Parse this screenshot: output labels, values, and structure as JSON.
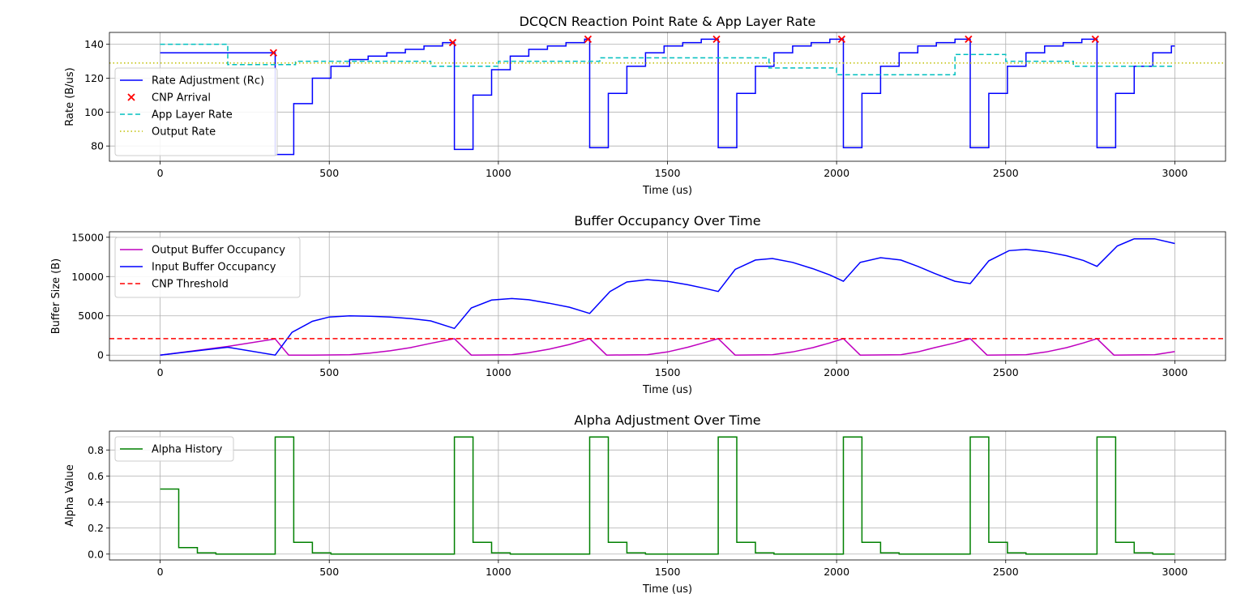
{
  "chart_data": [
    {
      "type": "line",
      "title": "DCQCN Reaction Point Rate & App Layer Rate",
      "xlabel": "Time (us)",
      "ylabel": "Rate (B/us)",
      "xlim": [
        -150,
        3150
      ],
      "ylim": [
        71,
        147
      ],
      "xticks": [
        0,
        500,
        1000,
        1500,
        2000,
        2500,
        3000
      ],
      "yticks": [
        80,
        100,
        120,
        140
      ],
      "grid": true,
      "legend": "lower-left",
      "series": [
        {
          "name": "Rate Adjustment (Rc)",
          "style": "solid-step",
          "color": "#0000ff",
          "x": [
            0,
            340,
            340,
            395,
            395,
            450,
            450,
            505,
            505,
            560,
            560,
            615,
            615,
            670,
            670,
            725,
            725,
            780,
            780,
            835,
            835,
            870,
            870,
            925,
            925,
            980,
            980,
            1035,
            1035,
            1090,
            1090,
            1145,
            1145,
            1200,
            1200,
            1255,
            1255,
            1270,
            1270,
            1325,
            1325,
            1380,
            1380,
            1435,
            1435,
            1490,
            1490,
            1545,
            1545,
            1600,
            1600,
            1650,
            1650,
            1705,
            1705,
            1760,
            1760,
            1815,
            1815,
            1870,
            1870,
            1925,
            1925,
            1980,
            1980,
            2020,
            2020,
            2075,
            2075,
            2130,
            2130,
            2185,
            2185,
            2240,
            2240,
            2295,
            2295,
            2350,
            2350,
            2395,
            2395,
            2450,
            2450,
            2505,
            2505,
            2560,
            2560,
            2615,
            2615,
            2670,
            2670,
            2725,
            2725,
            2770,
            2770,
            2825,
            2825,
            2880,
            2880,
            2935,
            2935,
            2990,
            2990,
            3000
          ],
          "y": [
            135,
            135,
            75,
            75,
            105,
            105,
            120,
            120,
            127,
            127,
            131,
            131,
            133,
            133,
            135,
            135,
            137,
            137,
            139,
            139,
            141,
            141,
            78,
            78,
            110,
            110,
            125,
            125,
            133,
            133,
            137,
            137,
            139,
            139,
            141,
            141,
            143,
            143,
            79,
            79,
            111,
            111,
            127,
            127,
            135,
            135,
            139,
            139,
            141,
            141,
            143,
            143,
            79,
            79,
            111,
            111,
            127,
            127,
            135,
            135,
            139,
            139,
            141,
            141,
            143,
            143,
            79,
            79,
            111,
            111,
            127,
            127,
            135,
            135,
            139,
            139,
            141,
            141,
            143,
            143,
            79,
            79,
            111,
            111,
            127,
            127,
            135,
            135,
            139,
            139,
            141,
            141,
            143,
            143,
            79,
            79,
            111,
            111,
            127,
            127,
            135,
            135,
            139,
            139
          ]
        },
        {
          "name": "CNP Arrival",
          "style": "x-marker",
          "color": "#ff0000",
          "x": [
            335,
            865,
            1265,
            1645,
            2015,
            2390,
            2765
          ],
          "y": [
            135,
            141,
            143,
            143,
            143,
            143,
            143
          ]
        },
        {
          "name": "App Layer Rate",
          "style": "dashed",
          "color": "#00bfbf",
          "x": [
            0,
            200,
            200,
            400,
            400,
            800,
            800,
            1000,
            1000,
            1300,
            1300,
            1800,
            1800,
            2000,
            2000,
            2350,
            2350,
            2500,
            2500,
            2700,
            2700,
            3000
          ],
          "y": [
            140,
            140,
            128,
            128,
            130,
            130,
            127,
            127,
            130,
            130,
            132,
            132,
            126,
            126,
            122,
            122,
            134,
            134,
            130,
            130,
            127,
            127
          ]
        },
        {
          "name": "Output Rate",
          "style": "dotted",
          "color": "#bfbf00",
          "x": [
            -150,
            3150
          ],
          "y": [
            129,
            129
          ]
        }
      ]
    },
    {
      "type": "line",
      "title": "Buffer Occupancy Over Time",
      "xlabel": "Time (us)",
      "ylabel": "Buffer Size (B)",
      "xlim": [
        -150,
        3150
      ],
      "ylim": [
        -700,
        15700
      ],
      "xticks": [
        0,
        500,
        1000,
        1500,
        2000,
        2500,
        3000
      ],
      "yticks": [
        0,
        5000,
        10000,
        15000
      ],
      "grid": true,
      "legend": "upper-left",
      "series": [
        {
          "name": "Output Buffer Occupancy",
          "style": "solid",
          "color": "#bf00bf",
          "x": [
            0,
            200,
            340,
            380,
            450,
            560,
            620,
            680,
            740,
            800,
            870,
            920,
            1040,
            1090,
            1150,
            1210,
            1270,
            1320,
            1440,
            1500,
            1560,
            1610,
            1650,
            1700,
            1810,
            1870,
            1930,
            1980,
            2020,
            2070,
            2190,
            2240,
            2290,
            2350,
            2395,
            2445,
            2560,
            2620,
            2680,
            2730,
            2770,
            2820,
            2940,
            3000
          ],
          "y": [
            0,
            1100,
            2050,
            0,
            0,
            50,
            250,
            550,
            950,
            1500,
            2100,
            0,
            50,
            300,
            750,
            1350,
            2100,
            0,
            50,
            400,
            1000,
            1600,
            2100,
            0,
            50,
            400,
            950,
            1550,
            2100,
            0,
            50,
            400,
            950,
            1550,
            2100,
            0,
            50,
            400,
            950,
            1550,
            2100,
            0,
            50,
            450
          ]
        },
        {
          "name": "Input Buffer Occupancy",
          "style": "solid",
          "color": "#0000ff",
          "x": [
            0,
            200,
            340,
            390,
            450,
            500,
            560,
            620,
            680,
            740,
            800,
            870,
            920,
            980,
            1040,
            1090,
            1150,
            1210,
            1270,
            1330,
            1380,
            1440,
            1500,
            1560,
            1610,
            1650,
            1700,
            1760,
            1810,
            1870,
            1930,
            1980,
            2020,
            2070,
            2130,
            2190,
            2240,
            2290,
            2350,
            2395,
            2450,
            2510,
            2560,
            2620,
            2680,
            2730,
            2770,
            2830,
            2880,
            2940,
            3000
          ],
          "y": [
            0,
            1000,
            0,
            2900,
            4300,
            4850,
            5000,
            4950,
            4850,
            4650,
            4350,
            3400,
            6000,
            7000,
            7200,
            7050,
            6600,
            6100,
            5300,
            8100,
            9300,
            9600,
            9400,
            8950,
            8500,
            8100,
            10900,
            12100,
            12300,
            11800,
            11000,
            10200,
            9400,
            11800,
            12400,
            12100,
            11300,
            10400,
            9400,
            9100,
            12000,
            13300,
            13450,
            13150,
            12650,
            12050,
            11300,
            13900,
            14800,
            14800,
            14200
          ]
        },
        {
          "name": "CNP Threshold",
          "style": "dashed",
          "color": "#ff0000",
          "x": [
            -150,
            3150
          ],
          "y": [
            2100,
            2100
          ]
        }
      ]
    },
    {
      "type": "line",
      "title": "Alpha Adjustment Over Time",
      "xlabel": "Time (us)",
      "ylabel": "Alpha Value",
      "xlim": [
        -150,
        3150
      ],
      "ylim": [
        -0.045,
        0.945
      ],
      "xticks": [
        0,
        500,
        1000,
        1500,
        2000,
        2500,
        3000
      ],
      "yticks": [
        0.0,
        0.2,
        0.4,
        0.6,
        0.8
      ],
      "grid": true,
      "legend": "upper-left",
      "series": [
        {
          "name": "Alpha History",
          "style": "solid-step",
          "color": "#008000",
          "x": [
            0,
            55,
            55,
            110,
            110,
            165,
            165,
            340,
            340,
            395,
            395,
            450,
            450,
            505,
            505,
            870,
            870,
            925,
            925,
            980,
            980,
            1035,
            1035,
            1270,
            1270,
            1325,
            1325,
            1380,
            1380,
            1435,
            1435,
            1650,
            1650,
            1705,
            1705,
            1760,
            1760,
            1815,
            1815,
            2020,
            2020,
            2075,
            2075,
            2130,
            2130,
            2185,
            2185,
            2395,
            2395,
            2450,
            2450,
            2505,
            2505,
            2560,
            2560,
            2770,
            2770,
            2825,
            2825,
            2880,
            2880,
            2935,
            2935,
            3000
          ],
          "y": [
            0.5,
            0.5,
            0.05,
            0.05,
            0.01,
            0.01,
            0.0,
            0.0,
            0.9,
            0.9,
            0.09,
            0.09,
            0.01,
            0.01,
            0.0,
            0.0,
            0.9,
            0.9,
            0.09,
            0.09,
            0.01,
            0.01,
            0.0,
            0.0,
            0.9,
            0.9,
            0.09,
            0.09,
            0.01,
            0.01,
            0.0,
            0.0,
            0.9,
            0.9,
            0.09,
            0.09,
            0.01,
            0.01,
            0.0,
            0.0,
            0.9,
            0.9,
            0.09,
            0.09,
            0.01,
            0.01,
            0.0,
            0.0,
            0.9,
            0.9,
            0.09,
            0.09,
            0.01,
            0.01,
            0.0,
            0.0,
            0.9,
            0.9,
            0.09,
            0.09,
            0.01,
            0.01,
            0.0,
            0.0
          ]
        }
      ]
    }
  ]
}
